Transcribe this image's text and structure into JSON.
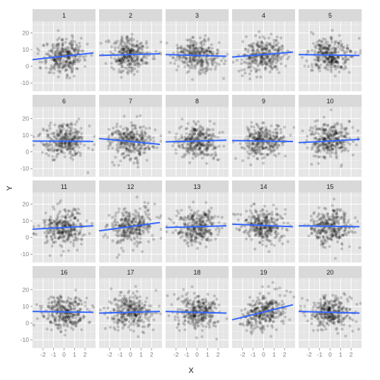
{
  "chart_data": {
    "type": "scatter",
    "facet_layout": {
      "rows": 4,
      "cols": 5
    },
    "xlabel": "X",
    "ylabel": "Y",
    "xlim": [
      -3,
      3
    ],
    "ylim": [
      -15,
      27
    ],
    "x_ticks": [
      -2,
      -1,
      0,
      1,
      2
    ],
    "y_ticks": [
      -10,
      0,
      10,
      20
    ],
    "points_per_panel": 300,
    "point_color": "#000000",
    "point_alpha": 0.18,
    "fit_line_color": "#3366ff",
    "grid": true,
    "panel_background": "#e5e5e5",
    "strip_background": "#d9d9d9",
    "panels": [
      {
        "label": "1",
        "fit": {
          "x": [
            -3,
            2.8
          ],
          "y": [
            4.0,
            8.0
          ]
        }
      },
      {
        "label": "2",
        "fit": {
          "x": [
            -3,
            2.8
          ],
          "y": [
            6.5,
            7.5
          ]
        }
      },
      {
        "label": "3",
        "fit": {
          "x": [
            -3,
            2.8
          ],
          "y": [
            7.0,
            6.0
          ]
        }
      },
      {
        "label": "4",
        "fit": {
          "x": [
            -3,
            2.8
          ],
          "y": [
            5.5,
            8.5
          ]
        }
      },
      {
        "label": "5",
        "fit": {
          "x": [
            -3,
            2.8
          ],
          "y": [
            7.0,
            6.5
          ]
        }
      },
      {
        "label": "6",
        "fit": {
          "x": [
            -3,
            2.8
          ],
          "y": [
            6.5,
            6.3
          ]
        }
      },
      {
        "label": "7",
        "fit": {
          "x": [
            -3,
            2.8
          ],
          "y": [
            8.0,
            4.5
          ]
        }
      },
      {
        "label": "8",
        "fit": {
          "x": [
            -3,
            2.8
          ],
          "y": [
            6.0,
            7.0
          ]
        }
      },
      {
        "label": "9",
        "fit": {
          "x": [
            -3,
            2.8
          ],
          "y": [
            6.8,
            6.2
          ]
        }
      },
      {
        "label": "10",
        "fit": {
          "x": [
            -3,
            2.8
          ],
          "y": [
            5.5,
            7.5
          ]
        }
      },
      {
        "label": "11",
        "fit": {
          "x": [
            -3,
            2.8
          ],
          "y": [
            5.0,
            7.0
          ]
        }
      },
      {
        "label": "12",
        "fit": {
          "x": [
            -3,
            2.8
          ],
          "y": [
            4.0,
            9.0
          ]
        }
      },
      {
        "label": "13",
        "fit": {
          "x": [
            -3,
            2.8
          ],
          "y": [
            6.0,
            7.0
          ]
        }
      },
      {
        "label": "14",
        "fit": {
          "x": [
            -3,
            2.8
          ],
          "y": [
            8.0,
            6.5
          ]
        }
      },
      {
        "label": "15",
        "fit": {
          "x": [
            -3,
            2.8
          ],
          "y": [
            7.0,
            6.5
          ]
        }
      },
      {
        "label": "16",
        "fit": {
          "x": [
            -3,
            2.8
          ],
          "y": [
            7.0,
            6.5
          ]
        }
      },
      {
        "label": "17",
        "fit": {
          "x": [
            -3,
            2.8
          ],
          "y": [
            6.0,
            7.0
          ]
        }
      },
      {
        "label": "18",
        "fit": {
          "x": [
            -3,
            2.8
          ],
          "y": [
            7.0,
            6.0
          ]
        }
      },
      {
        "label": "19",
        "fit": {
          "x": [
            -3,
            2.8
          ],
          "y": [
            2.0,
            11.0
          ]
        }
      },
      {
        "label": "20",
        "fit": {
          "x": [
            -3,
            2.8
          ],
          "y": [
            7.0,
            6.0
          ]
        }
      }
    ]
  }
}
